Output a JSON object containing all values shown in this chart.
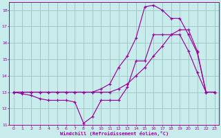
{
  "xlabel": "Windchill (Refroidissement éolien,°C)",
  "bg_color": "#c8ecec",
  "grid_color": "#a0c8c8",
  "line_color": "#990099",
  "xlim": [
    -0.5,
    23.5
  ],
  "ylim": [
    11,
    18.5
  ],
  "yticks": [
    11,
    12,
    13,
    14,
    15,
    16,
    17,
    18
  ],
  "xticks": [
    0,
    1,
    2,
    3,
    4,
    5,
    6,
    7,
    8,
    9,
    10,
    11,
    12,
    13,
    14,
    15,
    16,
    17,
    18,
    19,
    20,
    21,
    22,
    23
  ],
  "line1_x": [
    0,
    1,
    2,
    3,
    4,
    5,
    6,
    7,
    8,
    9,
    10,
    11,
    12,
    13,
    14,
    15,
    16,
    17,
    18,
    19,
    20,
    21,
    22,
    23
  ],
  "line1_y": [
    13.0,
    12.9,
    12.8,
    12.6,
    12.5,
    12.5,
    12.5,
    12.4,
    11.1,
    11.5,
    12.5,
    12.5,
    12.5,
    13.3,
    14.9,
    14.9,
    16.5,
    16.5,
    16.5,
    16.5,
    15.5,
    14.2,
    13.0,
    13.0
  ],
  "line2_x": [
    0,
    1,
    2,
    3,
    4,
    5,
    6,
    7,
    8,
    9,
    10,
    11,
    12,
    13,
    14,
    15,
    16,
    17,
    18,
    19,
    20,
    21,
    22,
    23
  ],
  "line2_y": [
    13.0,
    13.0,
    13.0,
    13.0,
    13.0,
    13.0,
    13.0,
    13.0,
    13.0,
    13.0,
    13.0,
    13.0,
    13.2,
    13.5,
    14.0,
    14.5,
    15.2,
    15.8,
    16.5,
    16.8,
    16.8,
    15.5,
    13.0,
    13.0
  ],
  "line3_x": [
    0,
    1,
    2,
    3,
    4,
    5,
    6,
    7,
    8,
    9,
    10,
    11,
    12,
    13,
    14,
    15,
    16,
    17,
    18,
    19,
    20,
    21,
    22,
    23
  ],
  "line3_y": [
    13.0,
    13.0,
    13.0,
    13.0,
    13.0,
    13.0,
    13.0,
    13.0,
    13.0,
    13.0,
    13.2,
    13.5,
    14.5,
    15.2,
    16.3,
    18.2,
    18.3,
    18.0,
    17.5,
    17.5,
    16.5,
    15.4,
    13.0,
    13.0
  ]
}
